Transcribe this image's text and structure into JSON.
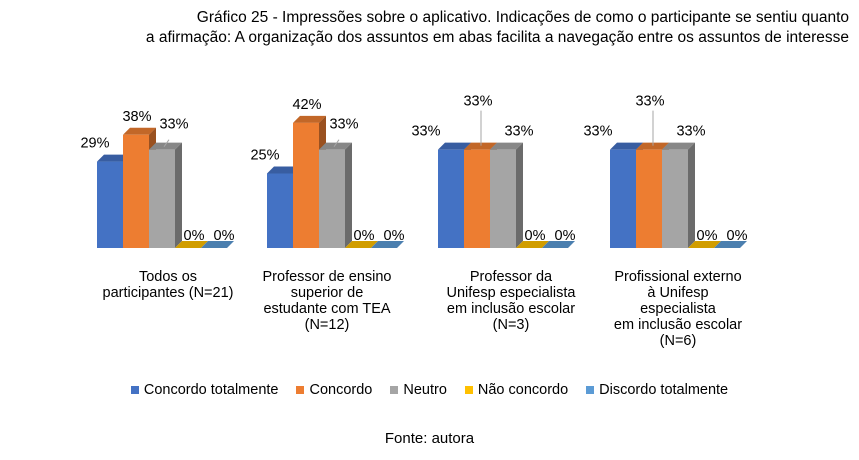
{
  "title": {
    "line1": "Gráfico 25 - Impressões sobre o aplicativo. Indicações de como o participante se sentiu quanto",
    "line2": "a afirmação: A organização dos assuntos em abas facilita a navegação entre os assuntos de interesse"
  },
  "source": "Fonte: autora",
  "chart_data": {
    "type": "bar",
    "title": "",
    "ylim": [
      0,
      50
    ],
    "grid": false,
    "legend_position": "bottom",
    "categories": [
      [
        "Todos os",
        "participantes (N=21)"
      ],
      [
        "Professor de ensino",
        "superior de",
        "estudante com TEA",
        "(N=12)"
      ],
      [
        "Professor da",
        "Unifesp especialista",
        "em inclusão escolar",
        "(N=3)"
      ],
      [
        "Profissional externo",
        "à Unifesp",
        "especialista",
        "em inclusão escolar",
        "(N=6)"
      ]
    ],
    "series": [
      {
        "name": "Concordo totalmente",
        "color": "#4472C4",
        "values": [
          29,
          25,
          33,
          33
        ],
        "labels": [
          "29%",
          "25%",
          "33%",
          "33%"
        ]
      },
      {
        "name": "Concordo",
        "color": "#ED7D31",
        "values": [
          38,
          42,
          33,
          33
        ],
        "labels": [
          "38%",
          "42%",
          "33%",
          "33%"
        ]
      },
      {
        "name": "Neutro",
        "color": "#A5A5A5",
        "values": [
          33,
          33,
          33,
          33
        ],
        "labels": [
          "33%",
          "33%",
          "33%",
          "33%"
        ]
      },
      {
        "name": "Não concordo",
        "color": "#FFC000",
        "values": [
          0,
          0,
          0,
          0
        ],
        "labels": [
          "0%",
          "0%",
          "0%",
          "0%"
        ]
      },
      {
        "name": "Discordo totalmente",
        "color": "#5B9BD5",
        "values": [
          0,
          0,
          0,
          0
        ],
        "labels": [
          "0%",
          "0%",
          "0%",
          "0%"
        ]
      }
    ]
  }
}
